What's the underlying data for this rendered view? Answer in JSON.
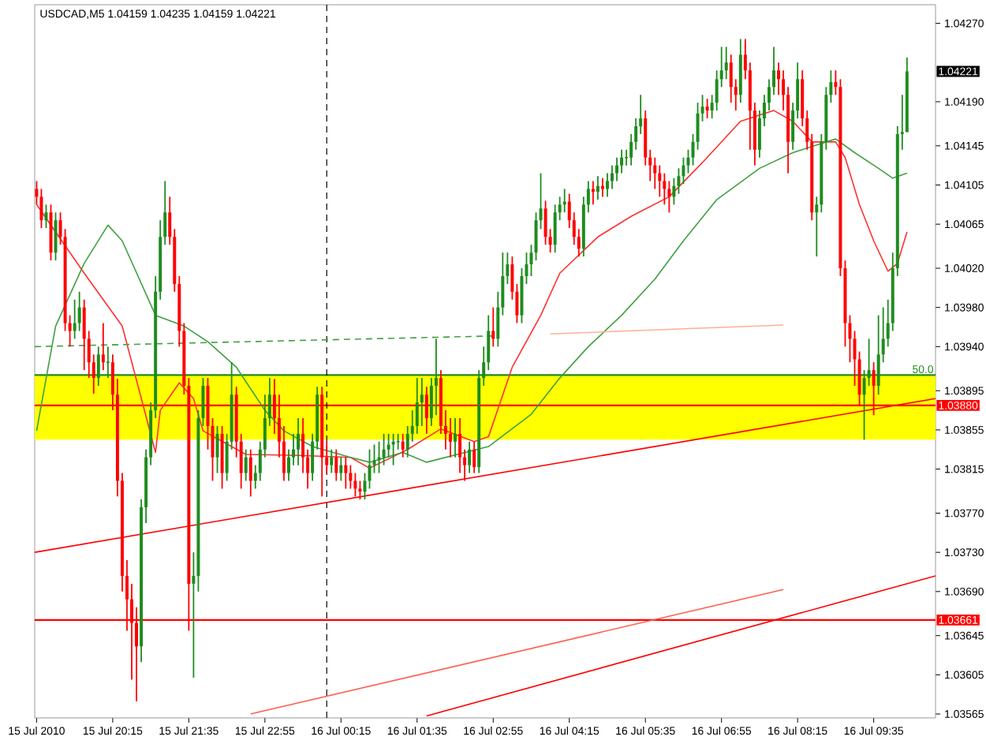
{
  "chart_data": {
    "type": "candlestick",
    "title": "USDCAD,M5  1.04159 1.04235 1.04159 1.04221",
    "x": [
      "2010-07-15T18:55",
      "2010-07-15T19:00",
      "2010-07-15T19:05",
      "2010-07-15T19:10",
      "2010-07-15T19:15",
      "2010-07-15T19:20",
      "2010-07-15T19:25",
      "2010-07-15T19:30",
      "2010-07-15T19:35",
      "2010-07-15T19:40",
      "2010-07-15T19:45",
      "2010-07-15T19:50",
      "2010-07-15T19:55",
      "2010-07-15T20:00",
      "2010-07-15T20:05",
      "2010-07-15T20:10",
      "2010-07-15T20:15",
      "2010-07-15T20:20",
      "2010-07-15T20:25",
      "2010-07-15T20:30",
      "2010-07-15T20:35",
      "2010-07-15T20:40",
      "2010-07-15T20:45",
      "2010-07-15T20:50",
      "2010-07-15T20:55",
      "2010-07-15T21:00",
      "2010-07-15T21:05",
      "2010-07-15T21:10",
      "2010-07-15T21:15",
      "2010-07-15T21:20",
      "2010-07-15T21:25",
      "2010-07-15T21:30",
      "2010-07-15T21:35",
      "2010-07-15T21:40",
      "2010-07-15T21:45",
      "2010-07-15T21:50",
      "2010-07-15T21:55",
      "2010-07-15T22:00",
      "2010-07-15T22:05",
      "2010-07-15T22:10",
      "2010-07-15T22:15",
      "2010-07-15T22:20",
      "2010-07-15T22:25",
      "2010-07-15T22:30",
      "2010-07-15T22:35",
      "2010-07-15T22:40",
      "2010-07-15T22:45",
      "2010-07-15T22:50",
      "2010-07-15T22:55",
      "2010-07-15T23:00",
      "2010-07-15T23:05",
      "2010-07-15T23:10",
      "2010-07-15T23:15",
      "2010-07-15T23:20",
      "2010-07-15T23:25",
      "2010-07-15T23:30",
      "2010-07-15T23:35",
      "2010-07-15T23:40",
      "2010-07-15T23:45",
      "2010-07-15T23:50",
      "2010-07-15T23:55",
      "2010-07-16T00:00",
      "2010-07-16T00:05",
      "2010-07-16T00:10",
      "2010-07-16T00:15",
      "2010-07-16T00:20",
      "2010-07-16T00:25",
      "2010-07-16T00:30",
      "2010-07-16T00:35",
      "2010-07-16T00:40",
      "2010-07-16T00:45",
      "2010-07-16T00:50",
      "2010-07-16T00:55",
      "2010-07-16T01:00",
      "2010-07-16T01:05",
      "2010-07-16T01:10",
      "2010-07-16T01:15",
      "2010-07-16T01:20",
      "2010-07-16T01:25",
      "2010-07-16T01:30",
      "2010-07-16T01:35",
      "2010-07-16T01:40",
      "2010-07-16T01:45",
      "2010-07-16T01:50",
      "2010-07-16T01:55",
      "2010-07-16T02:00",
      "2010-07-16T02:05",
      "2010-07-16T02:10",
      "2010-07-16T02:15",
      "2010-07-16T02:20",
      "2010-07-16T02:25",
      "2010-07-16T02:30",
      "2010-07-16T02:35",
      "2010-07-16T02:40",
      "2010-07-16T02:45",
      "2010-07-16T02:50",
      "2010-07-16T02:55",
      "2010-07-16T03:00",
      "2010-07-16T03:05",
      "2010-07-16T03:10",
      "2010-07-16T03:15",
      "2010-07-16T03:20",
      "2010-07-16T03:25",
      "2010-07-16T03:30",
      "2010-07-16T03:35",
      "2010-07-16T03:40",
      "2010-07-16T03:45",
      "2010-07-16T03:50",
      "2010-07-16T03:55",
      "2010-07-16T04:00",
      "2010-07-16T04:05",
      "2010-07-16T04:10",
      "2010-07-16T04:15",
      "2010-07-16T04:20",
      "2010-07-16T04:25",
      "2010-07-16T04:30",
      "2010-07-16T04:35",
      "2010-07-16T04:40",
      "2010-07-16T04:45",
      "2010-07-16T04:50",
      "2010-07-16T04:55",
      "2010-07-16T05:00",
      "2010-07-16T05:05",
      "2010-07-16T05:10",
      "2010-07-16T05:15",
      "2010-07-16T05:20",
      "2010-07-16T05:25",
      "2010-07-16T05:30",
      "2010-07-16T05:35",
      "2010-07-16T05:40",
      "2010-07-16T05:45",
      "2010-07-16T05:50",
      "2010-07-16T05:55",
      "2010-07-16T06:00",
      "2010-07-16T06:05",
      "2010-07-16T06:10",
      "2010-07-16T06:15",
      "2010-07-16T06:20",
      "2010-07-16T06:25",
      "2010-07-16T06:30",
      "2010-07-16T06:35",
      "2010-07-16T06:40",
      "2010-07-16T06:45",
      "2010-07-16T06:50",
      "2010-07-16T06:55",
      "2010-07-16T07:00",
      "2010-07-16T07:05",
      "2010-07-16T07:10",
      "2010-07-16T07:15",
      "2010-07-16T07:20",
      "2010-07-16T07:25",
      "2010-07-16T07:30",
      "2010-07-16T07:35",
      "2010-07-16T07:40",
      "2010-07-16T07:45",
      "2010-07-16T07:50",
      "2010-07-16T07:55",
      "2010-07-16T08:00",
      "2010-07-16T08:05",
      "2010-07-16T08:10",
      "2010-07-16T08:15",
      "2010-07-16T08:20",
      "2010-07-16T08:25",
      "2010-07-16T08:30",
      "2010-07-16T08:35",
      "2010-07-16T08:40",
      "2010-07-16T08:45",
      "2010-07-16T08:50",
      "2010-07-16T08:55",
      "2010-07-16T09:00",
      "2010-07-16T09:05",
      "2010-07-16T09:10",
      "2010-07-16T09:15",
      "2010-07-16T09:20",
      "2010-07-16T09:25",
      "2010-07-16T09:30",
      "2010-07-16T09:35",
      "2010-07-16T09:40",
      "2010-07-16T09:45",
      "2010-07-16T09:50",
      "2010-07-16T09:55",
      "2010-07-16T10:00",
      "2010-07-16T10:05",
      "2010-07-16T10:10"
    ],
    "ohlc": [
      [
        1.04101,
        1.04109,
        1.04085,
        1.04093
      ],
      [
        1.04093,
        1.04101,
        1.04061,
        1.04069
      ],
      [
        1.04069,
        1.04085,
        1.04061,
        1.04077
      ],
      [
        1.04077,
        1.04085,
        1.04028,
        1.04036
      ],
      [
        1.04036,
        1.04077,
        1.04028,
        1.04069
      ],
      [
        1.04069,
        1.04077,
        1.04044,
        1.04052
      ],
      [
        1.04052,
        1.0406,
        1.03956,
        1.03964
      ],
      [
        1.03964,
        1.03972,
        1.0394,
        1.03956
      ],
      [
        1.03956,
        1.03988,
        1.03948,
        1.03964
      ],
      [
        1.03964,
        1.03996,
        1.03956,
        1.0398
      ],
      [
        1.0398,
        1.03988,
        1.03916,
        1.03948
      ],
      [
        1.03948,
        1.03956,
        1.03908,
        1.03924
      ],
      [
        1.03924,
        1.03932,
        1.03892,
        1.03908
      ],
      [
        1.03908,
        1.0394,
        1.039,
        1.03932
      ],
      [
        1.03932,
        1.03964,
        1.03916,
        1.03924
      ],
      [
        1.03924,
        1.0394,
        1.03908,
        1.03924
      ],
      [
        1.03924,
        1.03932,
        1.03875,
        1.03891
      ],
      [
        1.03891,
        1.03907,
        1.03787,
        1.03803
      ],
      [
        1.03803,
        1.03811,
        1.0369,
        1.03706
      ],
      [
        1.03706,
        1.03722,
        1.0365,
        1.03682
      ],
      [
        1.03682,
        1.03698,
        1.036,
        1.03658
      ],
      [
        1.03658,
        1.03674,
        1.03578,
        1.03634
      ],
      [
        1.03634,
        1.03784,
        1.03618,
        1.03776
      ],
      [
        1.03776,
        1.03835,
        1.0376,
        1.03827
      ],
      [
        1.03827,
        1.03883,
        1.03819,
        1.03875
      ],
      [
        1.03875,
        1.04012,
        1.03867,
        1.03996
      ],
      [
        1.03996,
        1.04069,
        1.03988,
        1.04052
      ],
      [
        1.04052,
        1.04109,
        1.04044,
        1.04077
      ],
      [
        1.04077,
        1.04093,
        1.04044,
        1.04052
      ],
      [
        1.04052,
        1.0406,
        1.03996,
        1.04004
      ],
      [
        1.04004,
        1.04012,
        1.0394,
        1.03956
      ],
      [
        1.03956,
        1.03964,
        1.03891,
        1.039
      ],
      [
        1.039,
        1.03908,
        1.0365,
        1.03698
      ],
      [
        1.03698,
        1.0373,
        1.03602,
        1.03706
      ],
      [
        1.03706,
        1.03875,
        1.0369,
        1.03867
      ],
      [
        1.03867,
        1.03908,
        1.03859,
        1.039
      ],
      [
        1.039,
        1.03908,
        1.03835,
        1.03859
      ],
      [
        1.03859,
        1.03867,
        1.03803,
        1.03827
      ],
      [
        1.03827,
        1.03859,
        1.03811,
        1.03851
      ],
      [
        1.03851,
        1.03859,
        1.03795,
        1.03811
      ],
      [
        1.03811,
        1.03851,
        1.03803,
        1.03843
      ],
      [
        1.03843,
        1.03924,
        1.03835,
        1.03891
      ],
      [
        1.03891,
        1.03899,
        1.03827,
        1.03843
      ],
      [
        1.03843,
        1.03851,
        1.03795,
        1.03811
      ],
      [
        1.03811,
        1.03835,
        1.03803,
        1.03827
      ],
      [
        1.03827,
        1.03835,
        1.03787,
        1.03803
      ],
      [
        1.03803,
        1.03819,
        1.03795,
        1.03811
      ],
      [
        1.03811,
        1.03843,
        1.03803,
        1.03835
      ],
      [
        1.03835,
        1.03891,
        1.03827,
        1.03867
      ],
      [
        1.03867,
        1.03908,
        1.03859,
        1.03891
      ],
      [
        1.03891,
        1.03907,
        1.03851,
        1.03867
      ],
      [
        1.03867,
        1.03891,
        1.03827,
        1.03843
      ],
      [
        1.03843,
        1.03859,
        1.03803,
        1.03811
      ],
      [
        1.03811,
        1.03835,
        1.03803,
        1.03827
      ],
      [
        1.03827,
        1.03851,
        1.03819,
        1.03835
      ],
      [
        1.03835,
        1.03867,
        1.03819,
        1.03851
      ],
      [
        1.03851,
        1.03867,
        1.03811,
        1.03827
      ],
      [
        1.03827,
        1.03835,
        1.03795,
        1.03811
      ],
      [
        1.03811,
        1.03851,
        1.03803,
        1.03843
      ],
      [
        1.03843,
        1.03899,
        1.03835,
        1.03891
      ],
      [
        1.03891,
        1.03899,
        1.03787,
        1.03827
      ],
      [
        1.03827,
        1.03843,
        1.03811,
        1.03819
      ],
      [
        1.03819,
        1.03835,
        1.03811,
        1.03827
      ],
      [
        1.03827,
        1.03835,
        1.03803,
        1.03811
      ],
      [
        1.03811,
        1.03827,
        1.03803,
        1.03819
      ],
      [
        1.03819,
        1.03827,
        1.03795,
        1.03811
      ],
      [
        1.03811,
        1.03819,
        1.03795,
        1.03803
      ],
      [
        1.03803,
        1.03811,
        1.03787,
        1.03795
      ],
      [
        1.03795,
        1.03803,
        1.03784,
        1.03792
      ],
      [
        1.03792,
        1.03811,
        1.03784,
        1.03803
      ],
      [
        1.03803,
        1.03835,
        1.03795,
        1.03819
      ],
      [
        1.03819,
        1.0384,
        1.03811,
        1.03824
      ],
      [
        1.03824,
        1.03843,
        1.03811,
        1.03827
      ],
      [
        1.03827,
        1.03851,
        1.03819,
        1.03835
      ],
      [
        1.03835,
        1.03851,
        1.03827,
        1.0384
      ],
      [
        1.0384,
        1.03851,
        1.03819,
        1.03843
      ],
      [
        1.03843,
        1.03851,
        1.03835,
        1.03843
      ],
      [
        1.03843,
        1.03851,
        1.03827,
        1.03835
      ],
      [
        1.03835,
        1.03859,
        1.03827,
        1.03851
      ],
      [
        1.03851,
        1.03875,
        1.03843,
        1.03859
      ],
      [
        1.03859,
        1.03908,
        1.03851,
        1.03883
      ],
      [
        1.03883,
        1.03908,
        1.03859,
        1.03891
      ],
      [
        1.03891,
        1.03899,
        1.03851,
        1.03867
      ],
      [
        1.03867,
        1.03908,
        1.03859,
        1.039
      ],
      [
        1.039,
        1.03948,
        1.0387,
        1.03908
      ],
      [
        1.03908,
        1.03916,
        1.03851,
        1.03859
      ],
      [
        1.03859,
        1.03875,
        1.03835,
        1.03851
      ],
      [
        1.03851,
        1.03867,
        1.03827,
        1.03843
      ],
      [
        1.03843,
        1.03867,
        1.03827,
        1.03851
      ],
      [
        1.03851,
        1.03867,
        1.03811,
        1.03827
      ],
      [
        1.03827,
        1.03835,
        1.03803,
        1.03819
      ],
      [
        1.03819,
        1.03843,
        1.03811,
        1.03835
      ],
      [
        1.03835,
        1.03843,
        1.03811,
        1.03817
      ],
      [
        1.03817,
        1.03916,
        1.03811,
        1.03908
      ],
      [
        1.03908,
        1.0394,
        1.039,
        1.03924
      ],
      [
        1.03924,
        1.03972,
        1.03916,
        1.03956
      ],
      [
        1.03956,
        1.0398,
        1.0394,
        1.03948
      ],
      [
        1.03948,
        1.03996,
        1.0394,
        1.0398
      ],
      [
        1.0398,
        1.04036,
        1.03972,
        1.04012
      ],
      [
        1.04012,
        1.04036,
        1.04004,
        1.04024
      ],
      [
        1.04024,
        1.04032,
        1.03988,
        1.03996
      ],
      [
        1.03996,
        1.04004,
        1.03964,
        1.03972
      ],
      [
        1.03972,
        1.0402,
        1.03964,
        1.04012
      ],
      [
        1.04012,
        1.04036,
        1.04004,
        1.04024
      ],
      [
        1.04024,
        1.04044,
        1.04012,
        1.04036
      ],
      [
        1.04036,
        1.04077,
        1.04028,
        1.04069
      ],
      [
        1.04069,
        1.04117,
        1.0406,
        1.04081
      ],
      [
        1.04081,
        1.04089,
        1.04044,
        1.04052
      ],
      [
        1.04052,
        1.0406,
        1.04036,
        1.04044
      ],
      [
        1.04044,
        1.04085,
        1.04036,
        1.04077
      ],
      [
        1.04077,
        1.04093,
        1.04069,
        1.04085
      ],
      [
        1.04085,
        1.04101,
        1.04077,
        1.04088
      ],
      [
        1.04088,
        1.04096,
        1.04061,
        1.04069
      ],
      [
        1.04069,
        1.04077,
        1.04044,
        1.04052
      ],
      [
        1.04052,
        1.0406,
        1.04032,
        1.0404
      ],
      [
        1.0404,
        1.04093,
        1.04032,
        1.04085
      ],
      [
        1.04085,
        1.04109,
        1.04077,
        1.04101
      ],
      [
        1.04101,
        1.04109,
        1.04085,
        1.04098
      ],
      [
        1.04098,
        1.04114,
        1.0409,
        1.04104
      ],
      [
        1.04104,
        1.04112,
        1.04093,
        1.04101
      ],
      [
        1.04101,
        1.04117,
        1.04093,
        1.04109
      ],
      [
        1.04109,
        1.04125,
        1.04101,
        1.04117
      ],
      [
        1.04117,
        1.04133,
        1.04109,
        1.04125
      ],
      [
        1.04125,
        1.04141,
        1.04117,
        1.04133
      ],
      [
        1.04133,
        1.04141,
        1.04125,
        1.04133
      ],
      [
        1.04133,
        1.04157,
        1.04125,
        1.04149
      ],
      [
        1.04149,
        1.04173,
        1.04141,
        1.04165
      ],
      [
        1.04165,
        1.04197,
        1.04157,
        1.04173
      ],
      [
        1.04173,
        1.04181,
        1.04125,
        1.04133
      ],
      [
        1.04133,
        1.04141,
        1.04109,
        1.04125
      ],
      [
        1.04125,
        1.04133,
        1.04101,
        1.04117
      ],
      [
        1.04117,
        1.04125,
        1.04093,
        1.04109
      ],
      [
        1.04109,
        1.04117,
        1.04085,
        1.04101
      ],
      [
        1.04101,
        1.04109,
        1.04077,
        1.04093
      ],
      [
        1.04093,
        1.04112,
        1.04085,
        1.04104
      ],
      [
        1.04104,
        1.04122,
        1.04096,
        1.04114
      ],
      [
        1.04114,
        1.04133,
        1.04106,
        1.04125
      ],
      [
        1.04125,
        1.04141,
        1.04117,
        1.04133
      ],
      [
        1.04133,
        1.04157,
        1.04125,
        1.04149
      ],
      [
        1.04149,
        1.04189,
        1.04141,
        1.04178
      ],
      [
        1.04178,
        1.04197,
        1.0417,
        1.04185
      ],
      [
        1.04185,
        1.04193,
        1.04173,
        1.04181
      ],
      [
        1.04181,
        1.04197,
        1.04173,
        1.04189
      ],
      [
        1.04189,
        1.04222,
        1.04181,
        1.04213
      ],
      [
        1.04213,
        1.04246,
        1.04205,
        1.04222
      ],
      [
        1.04222,
        1.04246,
        1.04213,
        1.0423
      ],
      [
        1.0423,
        1.04238,
        1.04189,
        1.04205
      ],
      [
        1.04205,
        1.04213,
        1.04181,
        1.04197
      ],
      [
        1.04197,
        1.04254,
        1.04189,
        1.04238
      ],
      [
        1.04238,
        1.04254,
        1.04213,
        1.04222
      ],
      [
        1.04222,
        1.0423,
        1.04141,
        1.04181
      ],
      [
        1.04181,
        1.04189,
        1.04125,
        1.04141
      ],
      [
        1.04141,
        1.04181,
        1.04133,
        1.04173
      ],
      [
        1.04173,
        1.04197,
        1.04165,
        1.04189
      ],
      [
        1.04189,
        1.04213,
        1.04181,
        1.04205
      ],
      [
        1.04205,
        1.04246,
        1.04197,
        1.04222
      ],
      [
        1.04222,
        1.0423,
        1.04197,
        1.04213
      ],
      [
        1.04213,
        1.04222,
        1.04181,
        1.04197
      ],
      [
        1.04197,
        1.04205,
        1.04117,
        1.04149
      ],
      [
        1.04149,
        1.04189,
        1.04141,
        1.04181
      ],
      [
        1.04181,
        1.0423,
        1.04173,
        1.04213
      ],
      [
        1.04213,
        1.04222,
        1.04165,
        1.04173
      ],
      [
        1.04173,
        1.04181,
        1.04141,
        1.04149
      ],
      [
        1.04149,
        1.04157,
        1.04069,
        1.04077
      ],
      [
        1.04077,
        1.04093,
        1.04032,
        1.04085
      ],
      [
        1.04085,
        1.04157,
        1.04077,
        1.04149
      ],
      [
        1.04149,
        1.04205,
        1.04141,
        1.04197
      ],
      [
        1.04197,
        1.04222,
        1.04189,
        1.0421
      ],
      [
        1.0421,
        1.04222,
        1.04197,
        1.04205
      ],
      [
        1.04205,
        1.04213,
        1.04012,
        1.0402
      ],
      [
        1.0402,
        1.04028,
        1.0394,
        1.03964
      ],
      [
        1.03964,
        1.03972,
        1.03924,
        1.03948
      ],
      [
        1.03948,
        1.03956,
        1.039,
        1.03927
      ],
      [
        1.03927,
        1.03935,
        1.0388,
        1.03891
      ],
      [
        1.03891,
        1.03916,
        1.03845,
        1.03908
      ],
      [
        1.03908,
        1.03948,
        1.039,
        1.03916
      ],
      [
        1.03916,
        1.03924,
        1.0387,
        1.039
      ],
      [
        1.039,
        1.03972,
        1.03891,
        1.03932
      ],
      [
        1.03932,
        1.0398,
        1.03924,
        1.03948
      ],
      [
        1.03948,
        1.03988,
        1.0394,
        1.03964
      ],
      [
        1.03964,
        1.04036,
        1.03956,
        1.0402
      ],
      [
        1.0402,
        1.04165,
        1.04012,
        1.04157
      ],
      [
        1.04157,
        1.04197,
        1.04141,
        1.04159
      ],
      [
        1.04159,
        1.04235,
        1.04159,
        1.04221
      ]
    ],
    "series": [
      {
        "type": "line",
        "color": "#ff3030",
        "x": [
          "2010-07-15T18:55",
          "2010-07-15T19:45",
          "2010-07-15T20:25",
          "2010-07-15T21:00",
          "2010-07-15T21:05",
          "2010-07-15T21:25",
          "2010-07-15T21:40",
          "2010-07-15T21:50",
          "2010-07-15T22:35",
          "2010-07-15T23:30",
          "2010-07-16T00:25",
          "2010-07-16T00:45",
          "2010-07-16T01:25",
          "2010-07-16T02:00",
          "2010-07-16T02:35",
          "2010-07-16T02:50",
          "2010-07-16T03:15",
          "2010-07-16T03:45",
          "2010-07-16T04:05",
          "2010-07-16T04:45",
          "2010-07-16T05:20",
          "2010-07-16T06:00",
          "2010-07-16T06:35",
          "2010-07-16T07:15",
          "2010-07-16T07:50",
          "2010-07-16T08:10",
          "2010-07-16T08:30",
          "2010-07-16T08:55",
          "2010-07-16T09:05",
          "2010-07-16T09:20",
          "2010-07-16T09:35",
          "2010-07-16T09:50",
          "2010-07-16T10:00",
          "2010-07-16T10:10"
        ],
        "values": [
          1.04085,
          1.04015,
          1.03961,
          1.03832,
          1.03875,
          1.03903,
          1.03887,
          1.03854,
          1.0383,
          1.03829,
          1.03827,
          1.03816,
          1.03835,
          1.03856,
          1.03843,
          1.03848,
          1.03919,
          1.03972,
          1.04015,
          1.04052,
          1.04073,
          1.04093,
          1.04128,
          1.0417,
          1.04181,
          1.0417,
          1.04149,
          1.04149,
          1.04133,
          1.04085,
          1.04048,
          1.04017,
          1.04025,
          1.04057
        ]
      },
      {
        "type": "line",
        "color": "#40a040",
        "x": [
          "2010-07-15T18:55",
          "2010-07-15T19:15",
          "2010-07-15T19:45",
          "2010-07-15T20:10",
          "2010-07-15T20:25",
          "2010-07-15T21:00",
          "2010-07-15T21:30",
          "2010-07-15T21:55",
          "2010-07-15T22:25",
          "2010-07-15T22:55",
          "2010-07-15T23:15",
          "2010-07-15T23:45",
          "2010-07-16T00:25",
          "2010-07-16T00:45",
          "2010-07-16T01:20",
          "2010-07-16T01:45",
          "2010-07-16T02:50",
          "2010-07-16T03:35",
          "2010-07-16T04:05",
          "2010-07-16T04:35",
          "2010-07-16T05:10",
          "2010-07-16T05:45",
          "2010-07-16T06:15",
          "2010-07-16T06:50",
          "2010-07-16T07:35",
          "2010-07-16T08:10",
          "2010-07-16T08:55",
          "2010-07-16T09:15",
          "2010-07-16T09:40",
          "2010-07-16T09:55",
          "2010-07-16T10:10"
        ],
        "values": [
          1.03854,
          1.03961,
          1.04025,
          1.04064,
          1.04048,
          1.03972,
          1.03961,
          1.03945,
          1.03919,
          1.03875,
          1.03854,
          1.03838,
          1.03827,
          1.03822,
          1.03832,
          1.03822,
          1.03838,
          1.03871,
          1.03908,
          1.0394,
          1.03972,
          1.04009,
          1.04048,
          1.0409,
          1.04122,
          1.04138,
          1.04152,
          1.04138,
          1.04122,
          1.04112,
          1.04117
        ]
      },
      {
        "type": "line",
        "color": "#40a040",
        "line_style": "dashed",
        "x": [
          "2010-07-15T18:53",
          "2010-07-16T03:00"
        ],
        "values": [
          1.0394,
          1.03951
        ]
      },
      {
        "type": "line",
        "color": "#ffb090",
        "x": [
          "2010-07-16T03:55",
          "2010-07-16T08:00"
        ],
        "values": [
          1.03953,
          1.03962
        ]
      },
      {
        "type": "line",
        "color": "#ff0000",
        "x": [
          "2010-07-15T18:53",
          "2010-07-16T10:40"
        ],
        "values": [
          1.0373,
          1.03887
        ]
      },
      {
        "type": "line",
        "color": "#ff6050",
        "x": [
          "2010-07-15T22:40",
          "2010-07-16T08:00"
        ],
        "values": [
          1.03565,
          1.03692
        ]
      },
      {
        "type": "line",
        "color": "#ff0000",
        "x": [
          "2010-07-16T01:45",
          "2010-07-16T10:40"
        ],
        "values": [
          1.03563,
          1.03706
        ]
      }
    ],
    "bands": [
      {
        "axis": "y",
        "from": 1.03845,
        "to": 1.03911,
        "color": "#ffff00"
      }
    ],
    "ref_lines": [
      {
        "axis": "y",
        "value": 1.03911,
        "color": "#1e8c1e"
      },
      {
        "axis": "y",
        "value": 1.0388,
        "label": "1.03880",
        "color": "#ff0000"
      },
      {
        "axis": "y",
        "value": 1.03661,
        "label": "1.03661",
        "color": "#ff0000"
      },
      {
        "axis": "x",
        "value": "2010-07-16T00:00",
        "color": "#000000",
        "line_style": "dashed"
      }
    ],
    "annotations": [
      "1.04221",
      {
        "text": "50.0",
        "y": 1.03911
      }
    ],
    "xlim": [
      "2010-07-15T18:53",
      "2010-07-16T10:40"
    ],
    "ylim": [
      1.03561,
      1.04289
    ],
    "xticks": [
      {
        "value": "2010-07-15T18:55",
        "label": "15 Jul 2010"
      },
      {
        "value": "2010-07-15T20:15",
        "label": "15 Jul 20:15"
      },
      {
        "value": "2010-07-15T21:35",
        "label": "15 Jul 21:35"
      },
      {
        "value": "2010-07-15T22:55",
        "label": "15 Jul 22:55"
      },
      {
        "value": "2010-07-16T00:15",
        "label": "16 Jul 00:15"
      },
      {
        "value": "2010-07-16T01:35",
        "label": "16 Jul 01:35"
      },
      {
        "value": "2010-07-16T02:55",
        "label": "16 Jul 02:55"
      },
      {
        "value": "2010-07-16T04:15",
        "label": "16 Jul 04:15"
      },
      {
        "value": "2010-07-16T05:35",
        "label": "16 Jul 05:35"
      },
      {
        "value": "2010-07-16T06:55",
        "label": "16 Jul 06:55"
      },
      {
        "value": "2010-07-16T08:15",
        "label": "16 Jul 08:15"
      },
      {
        "value": "2010-07-16T09:35",
        "label": "16 Jul 09:35"
      }
    ],
    "yticks": [
      {
        "value": 1.0427,
        "label": "1.04270"
      },
      {
        "value": 1.0419,
        "label": "1.04190"
      },
      {
        "value": 1.04145,
        "label": "1.04145"
      },
      {
        "value": 1.04105,
        "label": "1.04105"
      },
      {
        "value": 1.04065,
        "label": "1.04065"
      },
      {
        "value": 1.0402,
        "label": "1.04020"
      },
      {
        "value": 1.0398,
        "label": "1.03980"
      },
      {
        "value": 1.0394,
        "label": "1.03940"
      },
      {
        "value": 1.03895,
        "label": "1.03895"
      },
      {
        "value": 1.03855,
        "label": "1.03855"
      },
      {
        "value": 1.03815,
        "label": "1.03815"
      },
      {
        "value": 1.0377,
        "label": "1.03770"
      },
      {
        "value": 1.0373,
        "label": "1.03730"
      },
      {
        "value": 1.0369,
        "label": "1.03690"
      },
      {
        "value": 1.03645,
        "label": "1.03645"
      },
      {
        "value": 1.03605,
        "label": "1.03605"
      },
      {
        "value": 1.03565,
        "label": "1.03565"
      }
    ]
  }
}
